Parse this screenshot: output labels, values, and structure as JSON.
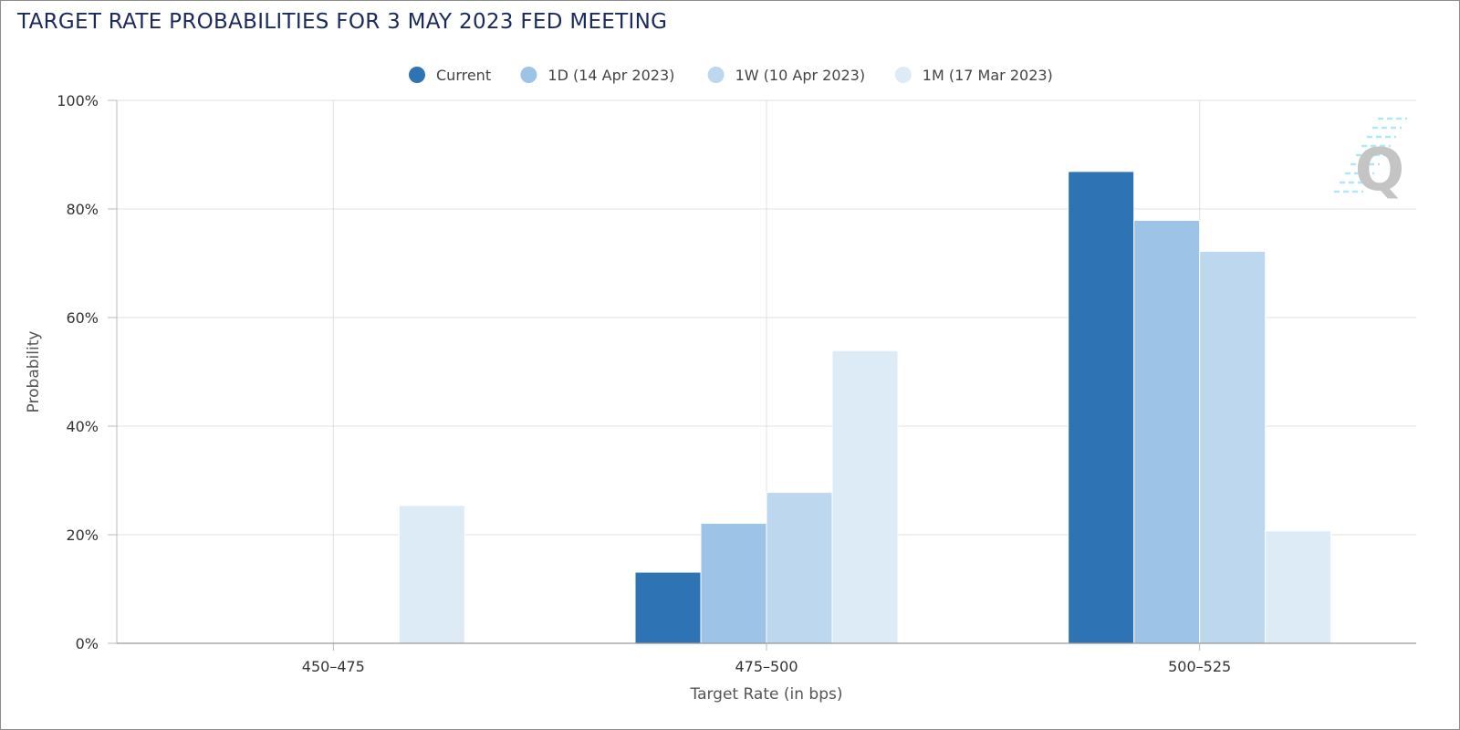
{
  "chart_data": {
    "type": "bar",
    "title": "TARGET RATE PROBABILITIES FOR 3 MAY 2023 FED MEETING",
    "xlabel": "Target Rate (in bps)",
    "ylabel": "Probability",
    "categories": [
      "450-475",
      "475-500",
      "500-525"
    ],
    "y_ticks": [
      "0%",
      "20%",
      "40%",
      "60%",
      "80%",
      "100%"
    ],
    "ylim": [
      0,
      100
    ],
    "grid": true,
    "legend_position": "top-center",
    "series": [
      {
        "name": "Current",
        "color": "#2e74b5",
        "values": [
          0,
          13.1,
          86.9
        ]
      },
      {
        "name": "1D (14 Apr 2023)",
        "color": "#9dc3e6",
        "values": [
          0,
          22.1,
          77.9
        ]
      },
      {
        "name": "1W (10 Apr 2023)",
        "color": "#bdd7ee",
        "values": [
          0,
          27.8,
          72.2
        ]
      },
      {
        "name": "1M (17 Mar 2023)",
        "color": "#ddebf7",
        "values": [
          25.4,
          53.9,
          20.7
        ]
      }
    ]
  }
}
